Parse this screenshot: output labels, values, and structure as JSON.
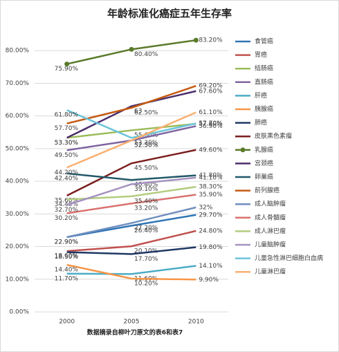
{
  "chart_data": {
    "type": "line",
    "title": "年龄标准化癌症五年生存率",
    "x_label": "数据摘录自柳叶刀原文的表6和表7",
    "categories": [
      "2000",
      "2005",
      "2010"
    ],
    "ylim": [
      0,
      90
    ],
    "yticks": [
      {
        "value": 0,
        "label": "0.00%"
      },
      {
        "value": 10,
        "label": "10.00%"
      },
      {
        "value": 20,
        "label": "20.00%"
      },
      {
        "value": 30,
        "label": "30.00%"
      },
      {
        "value": 40,
        "label": "40.00%"
      },
      {
        "value": 50,
        "label": "50.00%"
      },
      {
        "value": 60,
        "label": "60.00%"
      },
      {
        "value": 70,
        "label": "70.00%"
      },
      {
        "value": 80,
        "label": "80.00%"
      }
    ],
    "grid": true,
    "legend": "right",
    "series": [
      {
        "name": "食管癌",
        "color": "#2e75b6",
        "values": [
          22.9,
          26.4,
          29.7
        ],
        "value_labels": [
          "22.90%",
          "26.40%",
          "29.70%"
        ]
      },
      {
        "name": "胃癌",
        "color": "#c0504d",
        "values": [
          18.6,
          20.1,
          24.8
        ],
        "value_labels": [
          "18.60%",
          "20.10%",
          "24.80%"
        ]
      },
      {
        "name": "结肠癌",
        "color": "#9bbb59",
        "values": [
          53.3,
          55.6,
          57.6
        ],
        "value_labels": [
          "53.30%",
          "55.60%",
          "57.60%"
        ]
      },
      {
        "name": "直肠癌",
        "color": "#8064a2",
        "values": [
          49.5,
          52.5,
          56.9
        ],
        "value_labels": [
          "49.50%",
          "52.50%",
          "56.90%"
        ]
      },
      {
        "name": "肝癌",
        "color": "#4bacc6",
        "values": [
          11.7,
          11.6,
          14.1
        ],
        "value_labels": [
          "11.70%",
          "11.60%",
          "14.10%"
        ]
      },
      {
        "name": "胰腺癌",
        "color": "#f79646",
        "values": [
          14.4,
          10.2,
          9.9
        ],
        "value_labels": [
          "14.40%",
          "10.20%",
          "9.90%"
        ]
      },
      {
        "name": "肺癌",
        "color": "#1f3864",
        "values": [
          18.3,
          17.7,
          19.8
        ],
        "value_labels": [
          "18.30%",
          "17.70%",
          "19.80%"
        ]
      },
      {
        "name": "皮肤黑色素瘤",
        "color": "#7b1e1e",
        "values": [
          35.6,
          45.5,
          49.6
        ],
        "value_labels": [
          "35.60%",
          "45.50%",
          "49.60%"
        ]
      },
      {
        "name": "乳腺癌",
        "color": "#5a7a2a",
        "marker": true,
        "values": [
          75.9,
          80.4,
          83.2
        ],
        "value_labels": [
          "75.90%",
          "80.40%",
          "83.20%"
        ]
      },
      {
        "name": "宫颈癌",
        "color": "#4b2d6b",
        "values": [
          53.3,
          63,
          67.6
        ],
        "value_labels": [
          "53.30%",
          "63",
          "67.60%"
        ]
      },
      {
        "name": "卵巢癌",
        "color": "#215868",
        "values": [
          42.4,
          40.4,
          41.8
        ],
        "value_labels": [
          "42.40%",
          "40.40%",
          "41.80%"
        ]
      },
      {
        "name": "前列腺癌",
        "color": "#c55a11",
        "values": [
          57.7,
          62.5,
          69.2
        ],
        "value_labels": [
          "57.70%",
          "62.50%",
          "69.20%"
        ]
      },
      {
        "name": "成人脑肿瘤",
        "color": "#6f8fbf",
        "values": [
          22.9,
          27.2,
          32
        ],
        "value_labels": [
          "22.90%",
          "27.20%",
          "32%"
        ]
      },
      {
        "name": "成人骨髓瘤",
        "color": "#d9716f",
        "values": [
          30.2,
          33.2,
          35.9
        ],
        "value_labels": [
          "30.20%",
          "33.20%",
          "35.90%"
        ]
      },
      {
        "name": "成人淋巴瘤",
        "color": "#b3cc7f",
        "values": [
          34.4,
          35.4,
          38.3
        ],
        "value_labels": [
          "34.40%",
          "35.40%",
          "38.30%"
        ]
      },
      {
        "name": "儿童脑肿瘤",
        "color": "#a491c0",
        "values": [
          32.7,
          39.1,
          41.1
        ],
        "value_labels": [
          "32.70%",
          "39.10%",
          "41.10%"
        ]
      },
      {
        "name": "儿童急性淋巴细胞白血病",
        "color": "#6cc5d9",
        "values": [
          61.8,
          53.3,
          57.7
        ],
        "value_labels": [
          "61.80%",
          "53.30%",
          "57.70%"
        ]
      },
      {
        "name": "儿童淋巴瘤",
        "color": "#f9b071",
        "values": [
          44.2,
          52.5,
          61.1
        ],
        "value_labels": [
          "44.20%",
          "52.50%",
          "61.10%"
        ]
      }
    ]
  }
}
